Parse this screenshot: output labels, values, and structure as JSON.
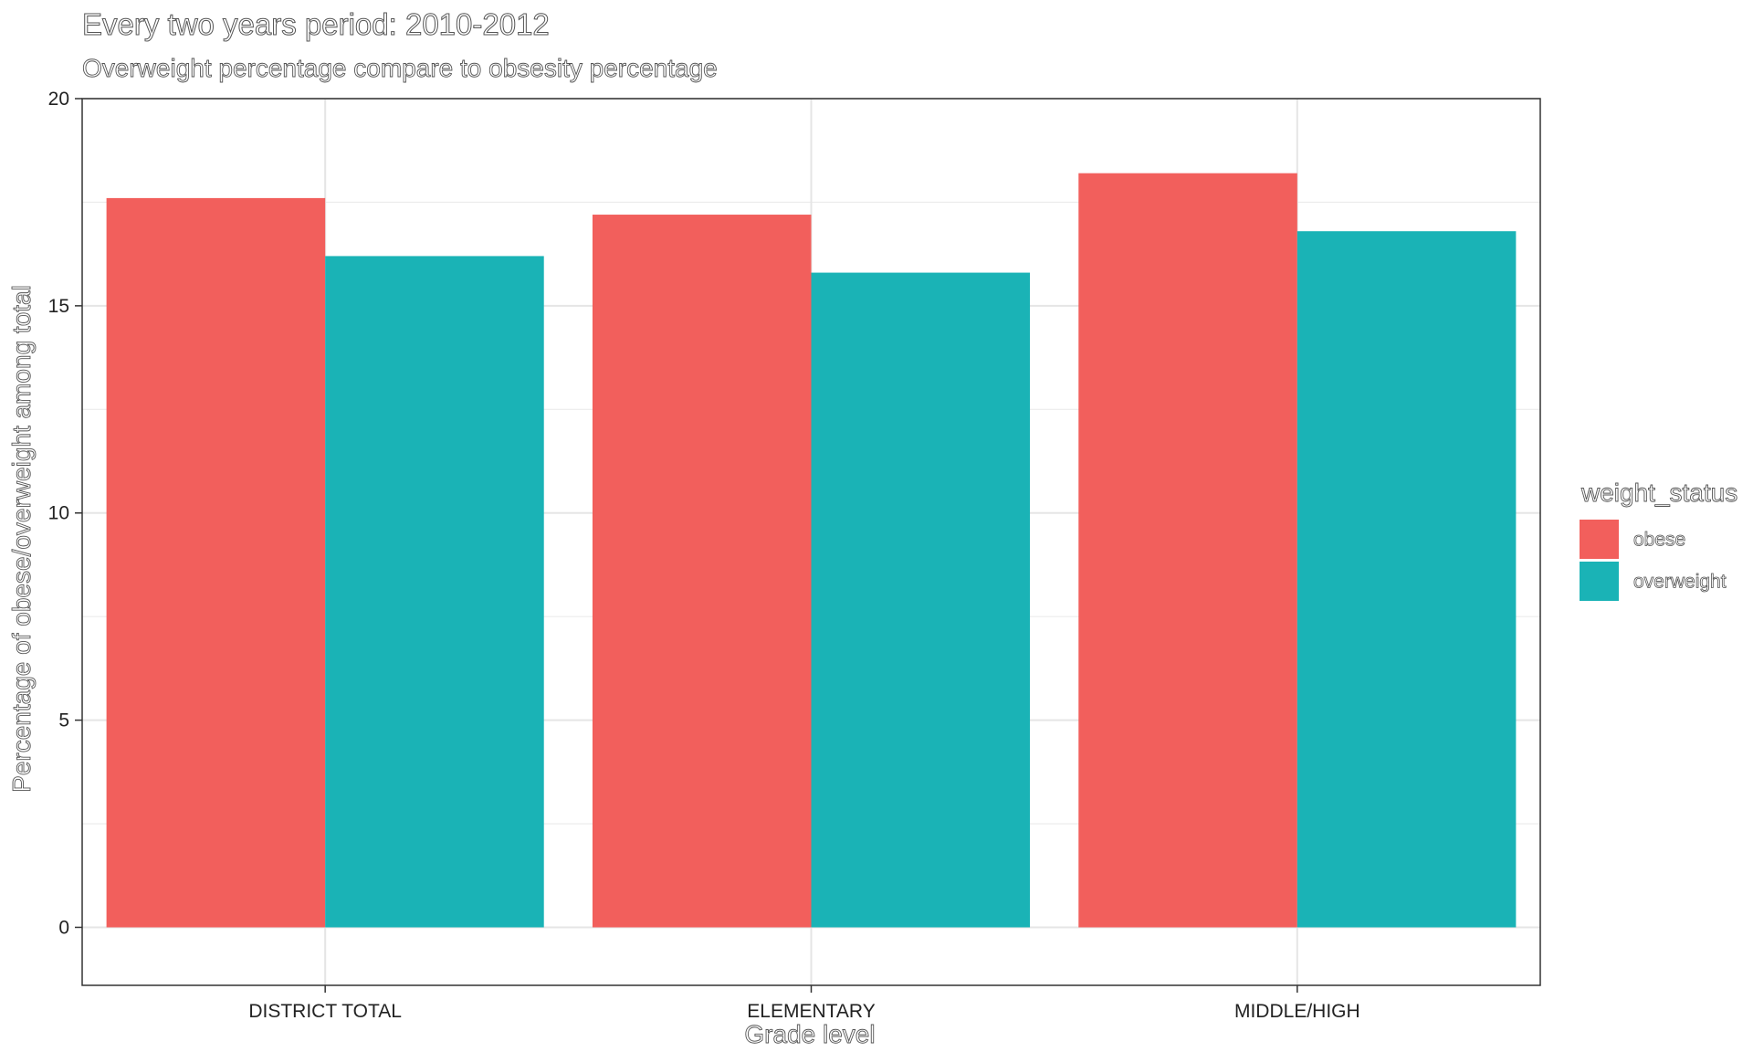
{
  "chart_data": {
    "type": "bar",
    "title": "Every two years period: 2010-2012",
    "subtitle": "Overweight percentage compare to obsesity percentage",
    "xlabel": "Grade level",
    "ylabel": "Percentage of obese/overweight among total",
    "categories": [
      "DISTRICT TOTAL",
      "ELEMENTARY",
      "MIDDLE/HIGH"
    ],
    "series": [
      {
        "name": "obese",
        "color": "#F25F5C",
        "values": [
          17.6,
          17.2,
          18.2
        ]
      },
      {
        "name": "overweight",
        "color": "#1AB3B6",
        "values": [
          16.2,
          15.8,
          16.8
        ]
      }
    ],
    "ylim": [
      -1.4,
      20
    ],
    "yticks": [
      0,
      5,
      10,
      15,
      20
    ],
    "grid": true,
    "legend": {
      "title": "weight_status",
      "position": "right"
    }
  }
}
